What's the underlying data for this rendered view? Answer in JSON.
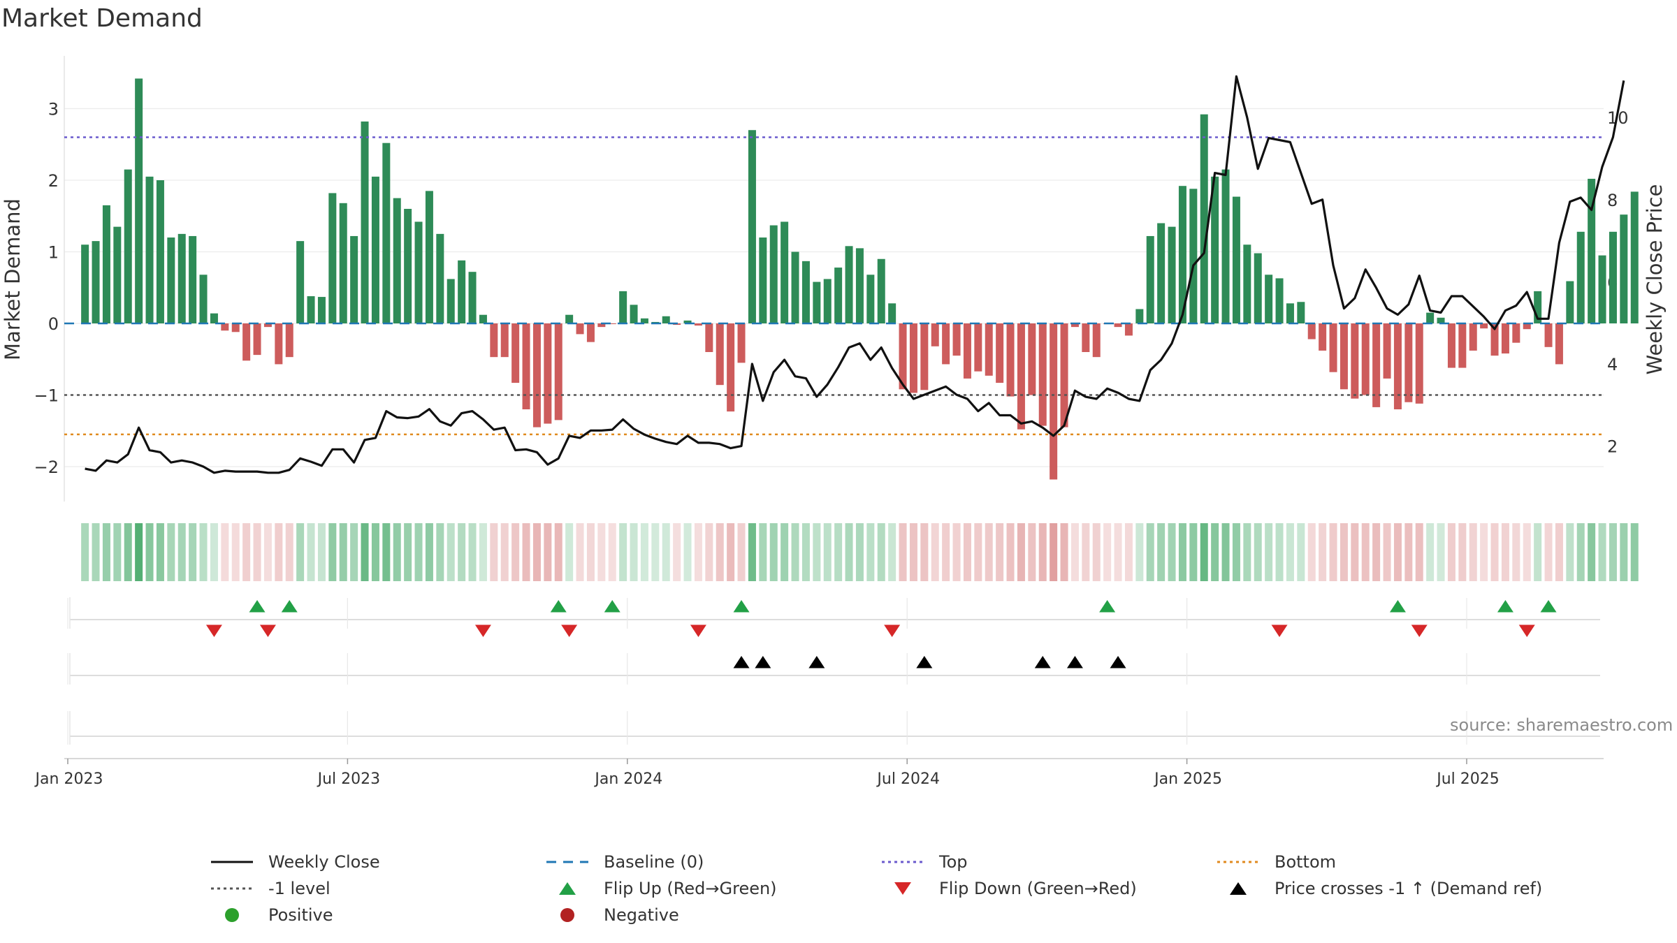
{
  "title": "Market Demand",
  "source": "source: sharemaestro.com",
  "colors": {
    "positive_bar": "#2e8b57",
    "negative_bar": "#cd5c5c",
    "price_line": "#111111",
    "baseline": "#1f77b4",
    "top_line": "#6a5acd",
    "bottom_line": "#e08a1e",
    "minus1_line": "#555555",
    "flip_up": "#22a046",
    "flip_down": "#d62728",
    "cross": "#000000",
    "positive_dot": "#2ca02c",
    "negative_dot": "#b22222"
  },
  "chart_data": {
    "type": "bar+line",
    "title": "Market Demand",
    "ylabel_left": "Market Demand",
    "ylabel_right": "Weekly Close Price",
    "ylim_left": [
      -2.5,
      3.75
    ],
    "ylim_right": [
      0.65,
      11.5
    ],
    "yticks_left": [
      3,
      2,
      1,
      0,
      -1,
      -2
    ],
    "yticks_left_labels": [
      "3",
      "2",
      "1",
      "0",
      "−1",
      "−2"
    ],
    "yticks_right": [
      10,
      8,
      6,
      4,
      2
    ],
    "yticks_right_labels": [
      "10",
      "8",
      "6",
      "4",
      "2"
    ],
    "xtick_labels": [
      "Jan 2023",
      "Jul 2023",
      "Jan 2024",
      "Jul 2024",
      "Jan 2025",
      "Jul 2025"
    ],
    "xtick_weeks": [
      0,
      26,
      52,
      78,
      104,
      130
    ],
    "week_offset": 1.6,
    "reference_lines": {
      "baseline": 0,
      "top": 2.6,
      "minus1": -1,
      "bottom": -1.55
    },
    "demand": [
      1.1,
      1.15,
      1.65,
      1.35,
      2.15,
      3.42,
      2.05,
      2.0,
      1.2,
      1.25,
      1.22,
      0.68,
      0.14,
      -0.1,
      -0.12,
      -0.52,
      -0.44,
      -0.05,
      -0.57,
      -0.47,
      1.15,
      0.38,
      0.37,
      1.82,
      1.68,
      1.22,
      2.82,
      2.05,
      2.52,
      1.75,
      1.6,
      1.42,
      1.85,
      1.25,
      0.62,
      0.88,
      0.72,
      0.12,
      -0.47,
      -0.47,
      -0.83,
      -1.2,
      -1.45,
      -1.4,
      -1.35,
      0.12,
      -0.15,
      -0.26,
      -0.05,
      -0.01,
      0.45,
      0.26,
      0.07,
      0.02,
      0.1,
      -0.02,
      0.04,
      -0.03,
      -0.4,
      -0.86,
      -1.23,
      -0.55,
      2.7,
      1.2,
      1.37,
      1.42,
      1.0,
      0.87,
      0.58,
      0.62,
      0.78,
      1.08,
      1.05,
      0.68,
      0.9,
      0.28,
      -0.92,
      -0.97,
      -0.93,
      -0.32,
      -0.57,
      -0.45,
      -0.77,
      -0.67,
      -0.73,
      -0.83,
      -1.02,
      -1.48,
      -1.0,
      -1.43,
      -2.18,
      -1.45,
      -0.05,
      -0.4,
      -0.47,
      -0.01,
      -0.05,
      -0.17,
      0.2,
      1.22,
      1.4,
      1.35,
      1.92,
      1.88,
      2.92,
      2.05,
      2.15,
      1.77,
      1.1,
      0.98,
      0.68,
      0.63,
      0.28,
      0.3,
      -0.22,
      -0.38,
      -0.68,
      -0.92,
      -1.05,
      -1.0,
      -1.17,
      -0.77,
      -1.2,
      -1.1,
      -1.12,
      0.15,
      0.08,
      -0.62,
      -0.62,
      -0.38,
      -0.07,
      -0.45,
      -0.42,
      -0.27,
      -0.08,
      0.45,
      -0.33,
      -0.57,
      0.59,
      1.28,
      2.02,
      0.95,
      1.28,
      1.52,
      1.84
    ],
    "close": [
      1.45,
      1.4,
      1.65,
      1.6,
      1.8,
      2.45,
      1.9,
      1.85,
      1.6,
      1.65,
      1.6,
      1.5,
      1.35,
      1.4,
      1.38,
      1.38,
      1.38,
      1.35,
      1.35,
      1.42,
      1.7,
      1.62,
      1.52,
      1.92,
      1.92,
      1.6,
      2.15,
      2.2,
      2.85,
      2.7,
      2.68,
      2.72,
      2.9,
      2.6,
      2.5,
      2.8,
      2.85,
      2.65,
      2.4,
      2.45,
      1.9,
      1.92,
      1.85,
      1.55,
      1.7,
      2.25,
      2.2,
      2.38,
      2.38,
      2.4,
      2.65,
      2.42,
      2.28,
      2.18,
      2.1,
      2.05,
      2.25,
      2.08,
      2.08,
      2.05,
      1.95,
      2.0,
      4.0,
      3.1,
      3.8,
      4.1,
      3.7,
      3.65,
      3.2,
      3.5,
      3.92,
      4.4,
      4.5,
      4.1,
      4.4,
      3.9,
      3.5,
      3.15,
      3.25,
      3.35,
      3.45,
      3.25,
      3.15,
      2.85,
      3.05,
      2.75,
      2.75,
      2.55,
      2.6,
      2.45,
      2.25,
      2.5,
      3.35,
      3.2,
      3.15,
      3.4,
      3.3,
      3.15,
      3.1,
      3.85,
      4.1,
      4.5,
      5.2,
      6.4,
      6.7,
      8.65,
      8.6,
      11.0,
      10.0,
      8.75,
      9.5,
      9.45,
      9.4,
      8.65,
      7.9,
      8.0,
      6.4,
      5.35,
      5.6,
      6.3,
      5.85,
      5.35,
      5.2,
      5.45,
      6.15,
      5.3,
      5.25,
      5.65,
      5.65,
      5.4,
      5.15,
      4.85,
      5.3,
      5.42,
      5.75,
      5.1,
      5.1,
      6.95,
      7.95,
      8.05,
      7.75,
      8.8,
      9.52,
      10.9
    ],
    "heat_strip": "one cell per week; green when demand > 0, red when demand < 0, intensity proportional to |demand|",
    "flip_up_weeks": [
      16,
      19,
      44,
      49,
      61,
      95,
      122,
      132,
      136
    ],
    "flip_down_weeks": [
      12,
      17,
      37,
      45,
      57,
      75,
      111,
      124,
      134
    ],
    "price_cross_weeks": [
      61,
      63,
      68,
      78,
      89,
      92,
      96
    ],
    "legend": [
      {
        "label": "Weekly Close",
        "symbol": "solid-line"
      },
      {
        "label": "Baseline (0)",
        "symbol": "dashed-line"
      },
      {
        "label": "Top",
        "symbol": "dotted-line-purple"
      },
      {
        "label": "Bottom",
        "symbol": "dotted-line-orange"
      },
      {
        "label": "-1 level",
        "symbol": "dotted-line-gray"
      },
      {
        "label": "Flip Up (Red→Green)",
        "symbol": "triangle-up-green"
      },
      {
        "label": "Flip Down (Green→Red)",
        "symbol": "triangle-down-red"
      },
      {
        "label": "Price crosses -1 ↑ (Demand ref)",
        "symbol": "triangle-up-black"
      },
      {
        "label": "Positive",
        "symbol": "dot-green"
      },
      {
        "label": "Negative",
        "symbol": "dot-red"
      }
    ]
  }
}
